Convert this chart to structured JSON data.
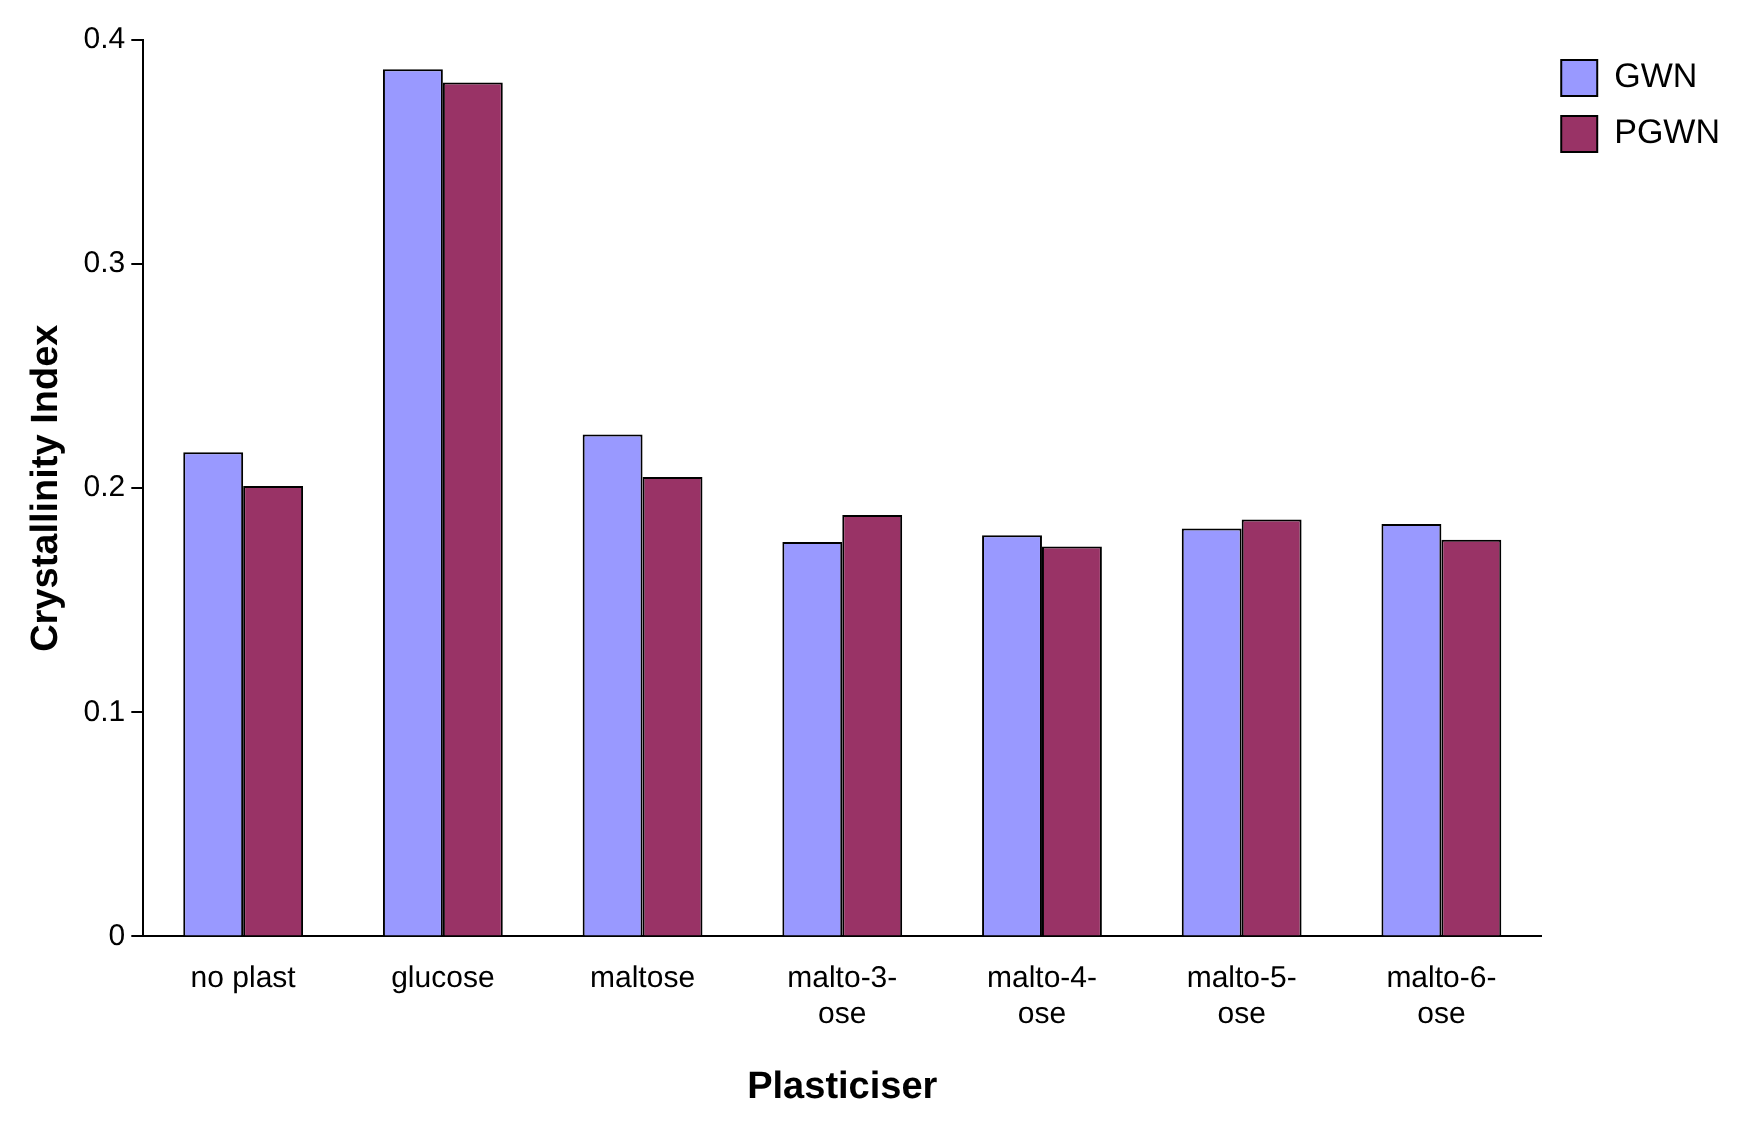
{
  "chart_data": {
    "type": "bar",
    "xlabel": "Plasticiser",
    "ylabel": "Crystallinity Index",
    "categories": [
      "no plast",
      "glucose",
      "maltose",
      "malto-3-ose",
      "malto-4-ose",
      "malto-5-ose",
      "malto-6-ose"
    ],
    "series": [
      {
        "name": "GWN",
        "color": "#9999ff",
        "values": [
          0.216,
          0.387,
          0.224,
          0.176,
          0.179,
          0.182,
          0.184
        ]
      },
      {
        "name": "PGWN",
        "color": "#993366",
        "values": [
          0.201,
          0.381,
          0.205,
          0.188,
          0.174,
          0.186,
          0.177
        ]
      }
    ],
    "ylim": [
      0,
      0.4
    ],
    "yticks": [
      0,
      0.1,
      0.2,
      0.3,
      0.4
    ],
    "grid": false,
    "legend": "top right"
  }
}
